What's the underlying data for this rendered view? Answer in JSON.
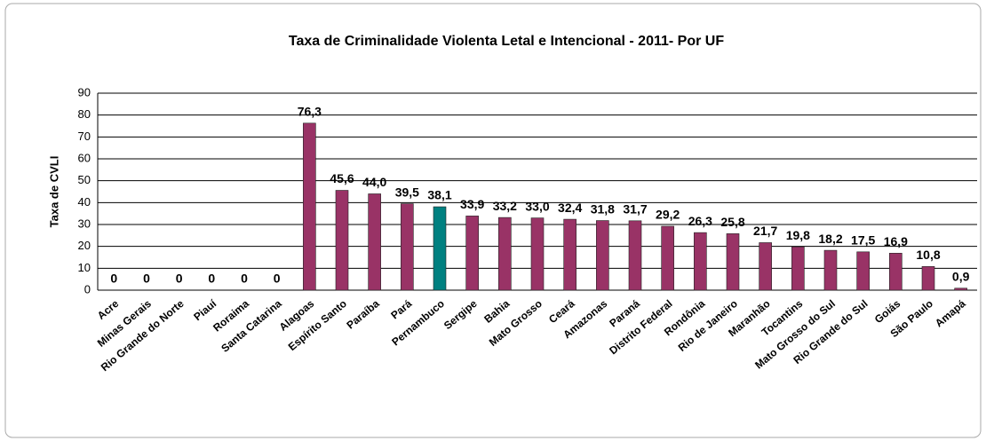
{
  "chart_data": {
    "type": "bar",
    "title": "Taxa de Criminalidade Violenta Letal e Intencional - 2011- Por UF",
    "y_label": "Taxa de CVLI",
    "categories": [
      "Acre",
      "Minas Gerais",
      "Rio Grande do Norte",
      "Piauí",
      "Roraima",
      "Santa Catarina",
      "Alagoas",
      "Espírito Santo",
      "Paraíba",
      "Pará",
      "Pernambuco",
      "Sergipe",
      "Bahia",
      "Mato Grosso",
      "Ceará",
      "Amazonas",
      "Paraná",
      "Distrito Federal",
      "Rondônia",
      "Rio de Janeiro",
      "Maranhão",
      "Tocantins",
      "Mato Grosso do Sul",
      "Rio Grande do Sul",
      "Goiás",
      "São Paulo",
      "Amapá"
    ],
    "values": [
      0,
      0,
      0,
      0,
      0,
      0,
      76.3,
      45.6,
      44.0,
      39.5,
      38.1,
      33.9,
      33.2,
      33.0,
      32.4,
      31.8,
      31.7,
      29.2,
      26.3,
      25.8,
      21.7,
      19.8,
      18.2,
      17.5,
      16.9,
      10.8,
      0.9
    ],
    "value_labels": [
      "0",
      "0",
      "0",
      "0",
      "0",
      "0",
      "76,3",
      "45,6",
      "44,0",
      "39,5",
      "38,1",
      "33,9",
      "33,2",
      "33,0",
      "32,4",
      "31,8",
      "31,7",
      "29,2",
      "26,3",
      "25,8",
      "21,7",
      "19,8",
      "18,2",
      "17,5",
      "16,9",
      "10,8",
      "0,9"
    ],
    "colors": [
      "#993366",
      "#993366",
      "#993366",
      "#993366",
      "#993366",
      "#993366",
      "#993366",
      "#993366",
      "#993366",
      "#993366",
      "#008080",
      "#993366",
      "#993366",
      "#993366",
      "#993366",
      "#993366",
      "#993366",
      "#993366",
      "#993366",
      "#993366",
      "#993366",
      "#993366",
      "#993366",
      "#993366",
      "#993366",
      "#993366",
      "#993366"
    ],
    "ylim": [
      0,
      90
    ],
    "yticks": [
      0,
      10,
      20,
      30,
      40,
      50,
      60,
      70,
      80,
      90
    ],
    "grid": true
  }
}
